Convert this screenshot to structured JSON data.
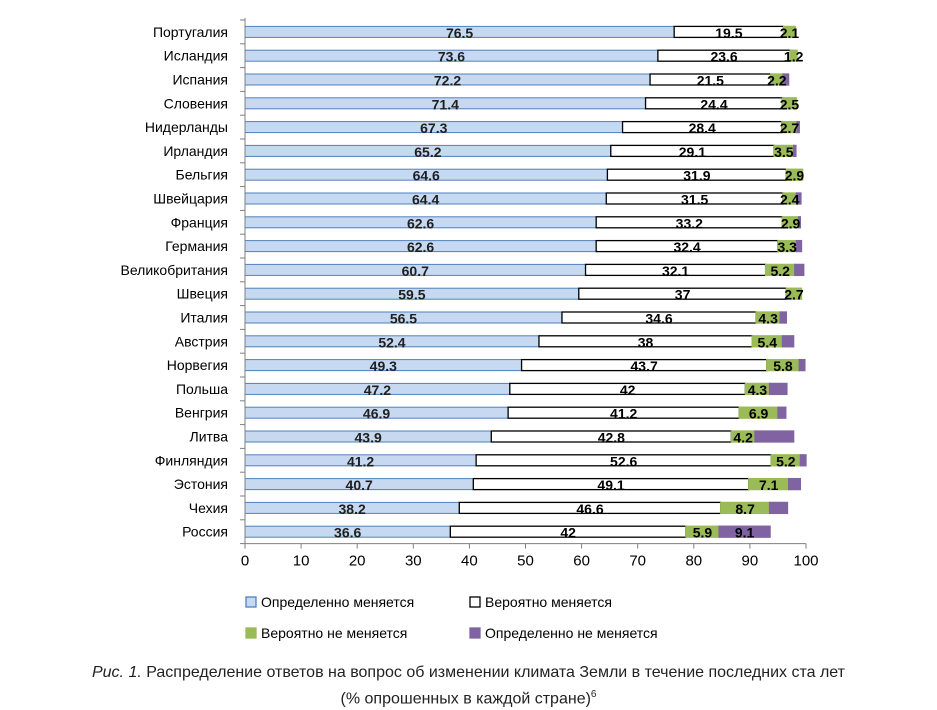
{
  "chart_data": {
    "type": "bar",
    "orientation": "horizontal",
    "stacked": true,
    "categories": [
      "Португалия",
      "Исландия",
      "Испания",
      "Словения",
      "Нидерланды",
      "Ирландия",
      "Бельгия",
      "Швейцария",
      "Франция",
      "Германия",
      "Великобритания",
      "Швеция",
      "Италия",
      "Австрия",
      "Норвегия",
      "Польша",
      "Венгрия",
      "Литва",
      "Финляндия",
      "Эстония",
      "Чехия",
      "Россия"
    ],
    "series": [
      {
        "name": "Определенно меняется",
        "color": "#c6d9f1",
        "stroke": "#4f81bd",
        "values": [
          76.5,
          73.6,
          72.2,
          71.4,
          67.3,
          65.2,
          64.6,
          64.4,
          62.6,
          62.6,
          60.7,
          59.5,
          56.5,
          52.4,
          49.3,
          47.2,
          46.9,
          43.9,
          41.2,
          40.7,
          38.2,
          36.6
        ],
        "labels": [
          "76.5",
          "73.6",
          "72.2",
          "71.4",
          "67.3",
          "65.2",
          "64.6",
          "64.4",
          "62.6",
          "62.6",
          "60.7",
          "59.5",
          "56.5",
          "52.4",
          "49.3",
          "47.2",
          "46.9",
          "43.9",
          "41.2",
          "40.7",
          "38.2",
          "36.6"
        ]
      },
      {
        "name": "Вероятно меняется",
        "color": "#ffffff",
        "stroke": "#000000",
        "values": [
          19.5,
          23.6,
          21.5,
          24.4,
          28.4,
          29.1,
          31.9,
          31.5,
          33.2,
          32.4,
          32.1,
          37,
          34.6,
          38,
          43.7,
          42,
          41.2,
          42.8,
          52.6,
          49.1,
          46.6,
          42
        ],
        "labels": [
          "19.5",
          "23.6",
          "21.5",
          "24.4",
          "28.4",
          "29.1",
          "31.9",
          "31.5",
          "33.2",
          "32.4",
          "32.1",
          "37",
          "34.6",
          "38",
          "43.7",
          "42",
          "41.2",
          "42.8",
          "52.6",
          "49.1",
          "46.6",
          "42"
        ]
      },
      {
        "name": "Вероятно не меняется",
        "color": "#9bbb59",
        "stroke": "#9bbb59",
        "values": [
          2.1,
          1.2,
          2.2,
          2.5,
          2.7,
          3.5,
          2.9,
          2.4,
          2.9,
          3.3,
          5.2,
          2.7,
          4.3,
          5.4,
          5.8,
          4.3,
          6.9,
          4.2,
          5.2,
          7.1,
          8.7,
          5.9
        ],
        "labels": [
          "2.1",
          "1.2",
          "2.2",
          "2.5",
          "2.7",
          "3.5",
          "2.9",
          "2.4",
          "2.9",
          "3.3",
          "5.2",
          "2.7",
          "4.3",
          "5.4",
          "5.8",
          "4.3",
          "6.9",
          "4.2",
          "5.2",
          "7.1",
          "8.7",
          "5.9"
        ]
      },
      {
        "name": "Определенно не меняется",
        "color": "#8064a2",
        "stroke": "#8064a2",
        "values": [
          0,
          0,
          1,
          0,
          0.4,
          0.4,
          0,
          0.8,
          0.3,
          0.9,
          1.6,
          0,
          1.1,
          2,
          1,
          3.1,
          1.4,
          6.9,
          1,
          2.1,
          3.2,
          9.1
        ],
        "labels": [
          "",
          "",
          "",
          "",
          "",
          "",
          "",
          "",
          "",
          "",
          "",
          "",
          "",
          "",
          "",
          "",
          "",
          "",
          "",
          "",
          "",
          "9.1"
        ]
      }
    ],
    "xlim": [
      0,
      100
    ],
    "xticks": [
      0,
      10,
      20,
      30,
      40,
      50,
      60,
      70,
      80,
      90,
      100
    ],
    "legend": "bottom",
    "grid": false
  },
  "caption": {
    "figure_label": "Рис. 1.",
    "line1": "Распределение ответов на вопрос об изменении климата Земли в течение последних ста лет",
    "line2": "(% опрошенных в каждой стране)",
    "footnote": "6"
  }
}
